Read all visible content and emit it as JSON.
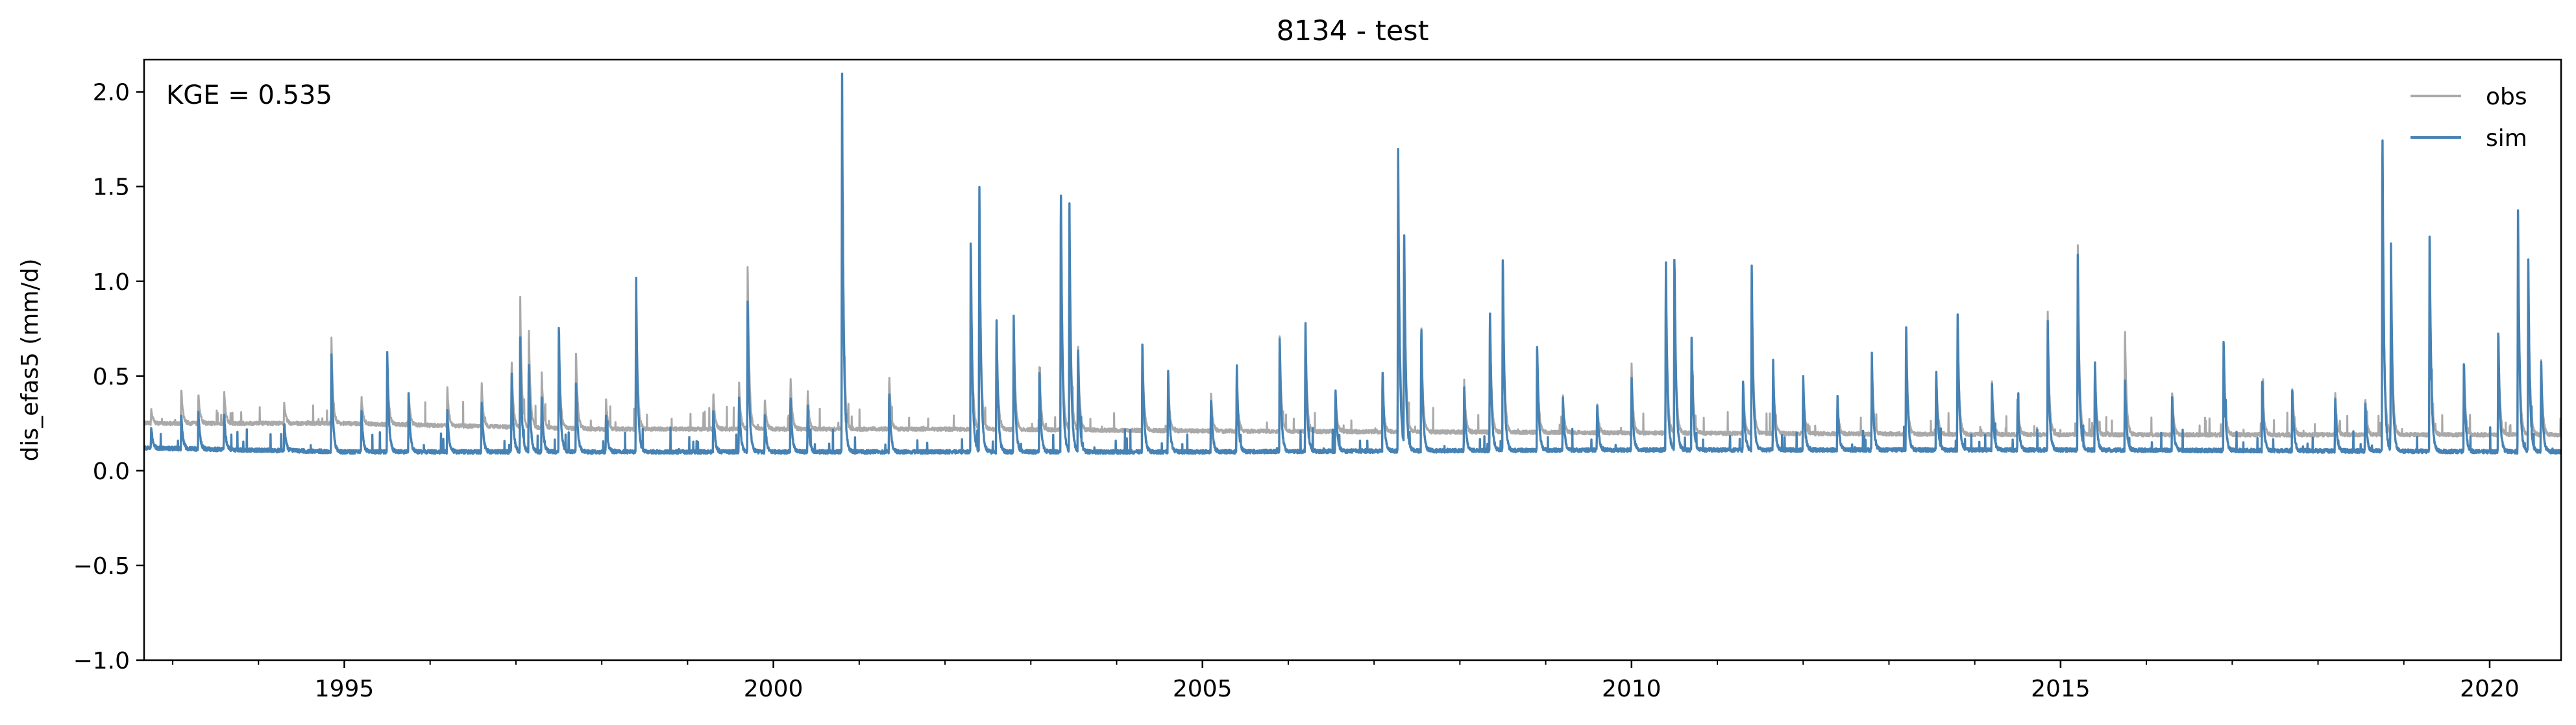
{
  "chart_data": {
    "type": "line",
    "title": "8134 - test",
    "ylabel": "dis_efas5 (mm/d)",
    "xlabel": "",
    "xlim": [
      "1992-09-01",
      "2020-10-31"
    ],
    "ylim": [
      -1.0,
      2.17
    ],
    "yticks": [
      -1.0,
      -0.5,
      0.0,
      0.5,
      1.0,
      1.5,
      2.0
    ],
    "ytick_labels": [
      "−1.0",
      "−0.5",
      "0.0",
      "0.5",
      "1.0",
      "1.5",
      "2.0"
    ],
    "xticks": [
      "1995-01-01",
      "2000-01-01",
      "2005-01-01",
      "2010-01-01",
      "2015-01-01",
      "2020-01-01"
    ],
    "xtick_labels": [
      "1995",
      "2000",
      "2005",
      "2010",
      "2015",
      "2020"
    ],
    "annotation": "KGE = 0.535",
    "legend_position": "top-right",
    "grid": false,
    "series": [
      {
        "name": "obs",
        "color": "#a9a9a9",
        "base": [
          [
            1992.67,
            0.25
          ],
          [
            1995,
            0.25
          ],
          [
            1998,
            0.22
          ],
          [
            2002,
            0.22
          ],
          [
            2005,
            0.21
          ],
          [
            2010,
            0.2
          ],
          [
            2015,
            0.19
          ],
          [
            2020.83,
            0.19
          ]
        ],
        "peaks": [
          [
            1992.75,
            0.33
          ],
          [
            1993.1,
            0.44
          ],
          [
            1993.3,
            0.42
          ],
          [
            1993.6,
            0.43
          ],
          [
            1994.3,
            0.36
          ],
          [
            1994.85,
            0.7
          ],
          [
            1995.2,
            0.4
          ],
          [
            1995.5,
            0.6
          ],
          [
            1995.75,
            0.42
          ],
          [
            1996.2,
            0.45
          ],
          [
            1996.6,
            0.48
          ],
          [
            1996.95,
            0.6
          ],
          [
            1997.05,
            0.92
          ],
          [
            1997.15,
            0.78
          ],
          [
            1997.3,
            0.55
          ],
          [
            1997.5,
            0.75
          ],
          [
            1997.7,
            0.65
          ],
          [
            1998.05,
            0.38
          ],
          [
            1998.4,
            0.98
          ],
          [
            1999.3,
            0.42
          ],
          [
            1999.6,
            0.48
          ],
          [
            1999.7,
            1.14
          ],
          [
            1999.9,
            0.38
          ],
          [
            2000.2,
            0.5
          ],
          [
            2000.4,
            0.42
          ],
          [
            2000.8,
            2.05
          ],
          [
            2001.35,
            0.52
          ],
          [
            2002.3,
            1.22
          ],
          [
            2002.4,
            1.52
          ],
          [
            2002.6,
            0.82
          ],
          [
            2002.8,
            0.82
          ],
          [
            2003.1,
            0.58
          ],
          [
            2003.35,
            1.55
          ],
          [
            2003.45,
            1.4
          ],
          [
            2003.55,
            0.7
          ],
          [
            2004.3,
            0.68
          ],
          [
            2004.6,
            0.5
          ],
          [
            2005.1,
            0.42
          ],
          [
            2005.4,
            0.5
          ],
          [
            2005.9,
            0.75
          ],
          [
            2006.2,
            0.8
          ],
          [
            2006.55,
            0.42
          ],
          [
            2007.1,
            0.48
          ],
          [
            2007.28,
            1.7
          ],
          [
            2007.35,
            1.3
          ],
          [
            2007.55,
            0.8
          ],
          [
            2008.05,
            0.48
          ],
          [
            2008.35,
            0.88
          ],
          [
            2008.5,
            1.17
          ],
          [
            2008.9,
            0.68
          ],
          [
            2009.2,
            0.4
          ],
          [
            2009.6,
            0.35
          ],
          [
            2010.0,
            0.58
          ],
          [
            2010.4,
            1.1
          ],
          [
            2010.5,
            1.15
          ],
          [
            2010.7,
            0.72
          ],
          [
            2011.3,
            0.48
          ],
          [
            2011.4,
            1.12
          ],
          [
            2011.65,
            0.58
          ],
          [
            2012.0,
            0.5
          ],
          [
            2012.4,
            0.38
          ],
          [
            2012.8,
            0.62
          ],
          [
            2013.2,
            0.78
          ],
          [
            2013.55,
            0.55
          ],
          [
            2013.8,
            0.85
          ],
          [
            2014.2,
            0.48
          ],
          [
            2014.5,
            0.38
          ],
          [
            2014.85,
            0.85
          ],
          [
            2015.2,
            1.25
          ],
          [
            2015.4,
            0.58
          ],
          [
            2015.75,
            0.78
          ],
          [
            2016.3,
            0.42
          ],
          [
            2016.9,
            0.7
          ],
          [
            2017.35,
            0.5
          ],
          [
            2017.7,
            0.45
          ],
          [
            2018.2,
            0.42
          ],
          [
            2018.55,
            0.4
          ],
          [
            2018.75,
            1.8
          ],
          [
            2018.85,
            1.15
          ],
          [
            2019.3,
            1.3
          ],
          [
            2019.7,
            0.55
          ],
          [
            2020.1,
            0.75
          ],
          [
            2020.33,
            1.42
          ],
          [
            2020.45,
            1.1
          ],
          [
            2020.6,
            0.6
          ]
        ]
      },
      {
        "name": "sim",
        "color": "#4682b4",
        "base": [
          [
            1992.67,
            0.12
          ],
          [
            1995,
            0.1
          ],
          [
            2000,
            0.1
          ],
          [
            2005,
            0.1
          ],
          [
            2010,
            0.11
          ],
          [
            2015,
            0.11
          ],
          [
            2020.83,
            0.1
          ]
        ],
        "peaks": [
          [
            1992.75,
            0.24
          ],
          [
            1993.1,
            0.3
          ],
          [
            1993.3,
            0.32
          ],
          [
            1993.6,
            0.31
          ],
          [
            1994.3,
            0.26
          ],
          [
            1994.85,
            0.62
          ],
          [
            1995.2,
            0.33
          ],
          [
            1995.5,
            0.66
          ],
          [
            1995.75,
            0.4
          ],
          [
            1996.2,
            0.33
          ],
          [
            1996.6,
            0.38
          ],
          [
            1996.95,
            0.55
          ],
          [
            1997.05,
            0.7
          ],
          [
            1997.15,
            0.6
          ],
          [
            1997.3,
            0.42
          ],
          [
            1997.5,
            0.8
          ],
          [
            1997.7,
            0.5
          ],
          [
            1998.05,
            0.3
          ],
          [
            1998.4,
            1.06
          ],
          [
            1999.3,
            0.34
          ],
          [
            1999.6,
            0.4
          ],
          [
            1999.7,
            0.95
          ],
          [
            1999.9,
            0.3
          ],
          [
            2000.2,
            0.4
          ],
          [
            2000.4,
            0.35
          ],
          [
            2000.8,
            2.08
          ],
          [
            2001.35,
            0.42
          ],
          [
            2002.3,
            1.28
          ],
          [
            2002.4,
            1.56
          ],
          [
            2002.6,
            0.84
          ],
          [
            2002.8,
            0.86
          ],
          [
            2003.1,
            0.55
          ],
          [
            2003.35,
            1.58
          ],
          [
            2003.45,
            1.43
          ],
          [
            2003.55,
            0.68
          ],
          [
            2004.3,
            0.72
          ],
          [
            2004.6,
            0.55
          ],
          [
            2005.1,
            0.4
          ],
          [
            2005.4,
            0.58
          ],
          [
            2005.9,
            0.74
          ],
          [
            2006.2,
            0.81
          ],
          [
            2006.55,
            0.45
          ],
          [
            2007.1,
            0.55
          ],
          [
            2007.28,
            1.74
          ],
          [
            2007.35,
            1.32
          ],
          [
            2007.55,
            0.8
          ],
          [
            2008.05,
            0.45
          ],
          [
            2008.35,
            0.9
          ],
          [
            2008.5,
            1.19
          ],
          [
            2008.9,
            0.7
          ],
          [
            2009.2,
            0.4
          ],
          [
            2009.6,
            0.36
          ],
          [
            2010.0,
            0.5
          ],
          [
            2010.4,
            1.15
          ],
          [
            2010.5,
            1.19
          ],
          [
            2010.7,
            0.75
          ],
          [
            2011.3,
            0.5
          ],
          [
            2011.4,
            1.14
          ],
          [
            2011.65,
            0.6
          ],
          [
            2012.0,
            0.52
          ],
          [
            2012.4,
            0.4
          ],
          [
            2012.8,
            0.65
          ],
          [
            2013.2,
            0.8
          ],
          [
            2013.55,
            0.56
          ],
          [
            2013.8,
            0.87
          ],
          [
            2014.2,
            0.48
          ],
          [
            2014.5,
            0.4
          ],
          [
            2014.85,
            0.8
          ],
          [
            2015.2,
            1.2
          ],
          [
            2015.4,
            0.6
          ],
          [
            2015.75,
            0.5
          ],
          [
            2016.3,
            0.42
          ],
          [
            2016.9,
            0.72
          ],
          [
            2017.35,
            0.5
          ],
          [
            2017.7,
            0.45
          ],
          [
            2018.2,
            0.4
          ],
          [
            2018.55,
            0.38
          ],
          [
            2018.75,
            1.9
          ],
          [
            2018.85,
            1.2
          ],
          [
            2019.3,
            1.33
          ],
          [
            2019.7,
            0.6
          ],
          [
            2020.1,
            0.78
          ],
          [
            2020.33,
            1.45
          ],
          [
            2020.45,
            1.12
          ],
          [
            2020.6,
            0.6
          ]
        ]
      }
    ]
  }
}
